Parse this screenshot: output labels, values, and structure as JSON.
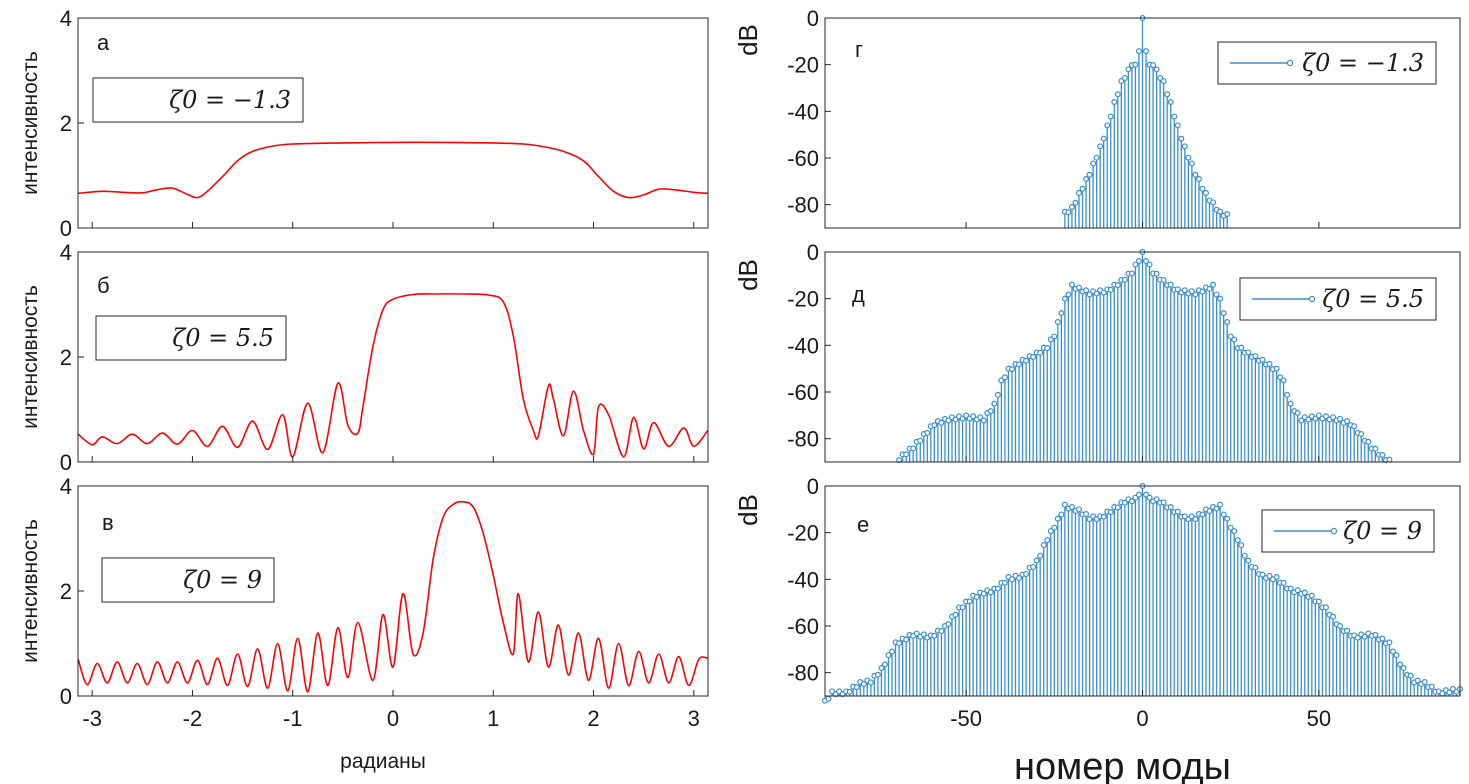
{
  "chart_data": [
    {
      "id": "a",
      "type": "line",
      "panel_letter": "а",
      "ylabel": "интенсивность",
      "xlabel": "",
      "legend": "ζ0 = −1.3",
      "xlim": [
        -3.1416,
        3.1416
      ],
      "ylim": [
        0,
        4
      ],
      "yticks": [
        "0",
        "2",
        "4"
      ],
      "xticks": [],
      "color": "#ff0000",
      "series": [
        {
          "x": [
            -3.14,
            -2.9,
            -2.7,
            -2.5,
            -2.35,
            -2.2,
            -2.05,
            -1.95,
            -1.85,
            -1.7,
            -1.55,
            -1.4,
            -1.2,
            -1.0,
            -0.5,
            0,
            0.5,
            1.0,
            1.3,
            1.5,
            1.7,
            1.9,
            2.05,
            2.2,
            2.35,
            2.5,
            2.65,
            2.8,
            3.0,
            3.14
          ],
          "y": [
            0.66,
            0.7,
            0.68,
            0.67,
            0.73,
            0.76,
            0.64,
            0.58,
            0.7,
            0.98,
            1.28,
            1.46,
            1.56,
            1.6,
            1.62,
            1.63,
            1.63,
            1.62,
            1.6,
            1.55,
            1.46,
            1.28,
            0.98,
            0.7,
            0.58,
            0.63,
            0.74,
            0.73,
            0.68,
            0.66
          ]
        }
      ]
    },
    {
      "id": "b",
      "type": "line",
      "panel_letter": "б",
      "ylabel": "интенсивность",
      "xlabel": "",
      "legend": "ζ0 = 5.5",
      "xlim": [
        -3.1416,
        3.1416
      ],
      "ylim": [
        0,
        4
      ],
      "yticks": [
        "0",
        "2",
        "4"
      ],
      "xticks": [],
      "color": "#ff0000",
      "series": [
        {
          "x": [
            -3.14,
            -3.0,
            -2.9,
            -2.75,
            -2.6,
            -2.45,
            -2.3,
            -2.15,
            -2.0,
            -1.85,
            -1.7,
            -1.55,
            -1.4,
            -1.25,
            -1.1,
            -1.0,
            -0.85,
            -0.7,
            -0.55,
            -0.45,
            -0.35,
            -0.3,
            -0.2,
            -0.1,
            0,
            0.2,
            0.4,
            0.7,
            0.95,
            1.1,
            1.2,
            1.3,
            1.4,
            1.45,
            1.55,
            1.6,
            1.7,
            1.8,
            1.9,
            2.0,
            2.05,
            2.15,
            2.3,
            2.4,
            2.5,
            2.6,
            2.75,
            2.9,
            3.0,
            3.14
          ],
          "y": [
            0.53,
            0.33,
            0.48,
            0.35,
            0.53,
            0.35,
            0.55,
            0.34,
            0.6,
            0.3,
            0.68,
            0.28,
            0.78,
            0.24,
            0.9,
            0.1,
            1.12,
            0.18,
            1.5,
            0.7,
            0.55,
            1.05,
            2.2,
            2.9,
            3.1,
            3.19,
            3.2,
            3.2,
            3.18,
            3.05,
            2.4,
            1.2,
            0.6,
            0.5,
            1.45,
            1.2,
            0.5,
            1.35,
            0.6,
            0.15,
            1.05,
            0.9,
            0.1,
            0.85,
            0.25,
            0.75,
            0.3,
            0.65,
            0.3,
            0.6
          ]
        }
      ]
    },
    {
      "id": "c",
      "type": "line",
      "panel_letter": "в",
      "ylabel": "интенсивность",
      "xlabel": "радианы",
      "legend": "ζ0 = 9",
      "xlim": [
        -3.1416,
        3.1416
      ],
      "ylim": [
        0,
        4
      ],
      "yticks": [
        "0",
        "2",
        "4"
      ],
      "xticks": [
        "-3",
        "-2",
        "-1",
        "0",
        "1",
        "2",
        "3"
      ],
      "color": "#ff0000",
      "series": [
        {
          "x": [
            -3.14,
            -3.05,
            -2.95,
            -2.85,
            -2.75,
            -2.65,
            -2.55,
            -2.45,
            -2.35,
            -2.25,
            -2.15,
            -2.05,
            -1.95,
            -1.85,
            -1.75,
            -1.65,
            -1.55,
            -1.45,
            -1.35,
            -1.25,
            -1.15,
            -1.05,
            -0.95,
            -0.85,
            -0.75,
            -0.65,
            -0.55,
            -0.45,
            -0.35,
            -0.2,
            -0.1,
            0,
            0.1,
            0.2,
            0.3,
            0.4,
            0.5,
            0.6,
            0.7,
            0.8,
            0.9,
            1.0,
            1.1,
            1.2,
            1.25,
            1.35,
            1.45,
            1.55,
            1.65,
            1.75,
            1.85,
            1.95,
            2.05,
            2.15,
            2.25,
            2.35,
            2.45,
            2.55,
            2.65,
            2.75,
            2.85,
            2.95,
            3.05,
            3.14
          ],
          "y": [
            0.7,
            0.22,
            0.62,
            0.25,
            0.65,
            0.25,
            0.62,
            0.22,
            0.65,
            0.25,
            0.65,
            0.25,
            0.68,
            0.22,
            0.72,
            0.2,
            0.8,
            0.18,
            0.9,
            0.15,
            1.0,
            0.1,
            1.1,
            0.08,
            1.2,
            0.2,
            1.3,
            0.35,
            1.4,
            0.3,
            1.55,
            0.55,
            1.95,
            0.8,
            1.2,
            2.6,
            3.4,
            3.65,
            3.7,
            3.6,
            3.1,
            2.3,
            1.4,
            0.8,
            1.95,
            0.65,
            1.6,
            0.55,
            1.35,
            0.4,
            1.2,
            0.3,
            1.1,
            0.15,
            1.0,
            0.2,
            0.85,
            0.25,
            0.8,
            0.25,
            0.75,
            0.2,
            0.7,
            0.72
          ]
        }
      ]
    },
    {
      "id": "d",
      "type": "stem",
      "panel_letter": "г",
      "ylabel": "dB",
      "xlabel": "",
      "legend": "ζ0 = −1.3",
      "xlim": [
        -90,
        90
      ],
      "ylim": [
        -90,
        0
      ],
      "yticks": [
        "0",
        "-20",
        "-40",
        "-60",
        "-80"
      ],
      "xticks": [],
      "color": "#3a8ecf",
      "envelope": {
        "x": [
          -22,
          -20,
          -18,
          -15,
          -12,
          -10,
          -8,
          -6,
          -4,
          -3,
          -2,
          -1,
          0,
          1,
          2,
          3,
          4,
          6,
          8,
          10,
          12,
          15,
          18,
          20,
          22,
          24
        ],
        "y": [
          -83,
          -81,
          -75,
          -66,
          -55,
          -46,
          -36,
          -27,
          -22,
          -19,
          -20,
          -13,
          0,
          -13,
          -20,
          -19,
          -22,
          -27,
          -36,
          -46,
          -55,
          -66,
          -75,
          -79,
          -83,
          -84
        ]
      }
    },
    {
      "id": "e",
      "type": "stem",
      "panel_letter": "д",
      "ylabel": "dB",
      "xlabel": "",
      "legend": "ζ0 = 5.5",
      "xlim": [
        -90,
        90
      ],
      "ylim": [
        -90,
        0
      ],
      "yticks": [
        "0",
        "-20",
        "-40",
        "-60",
        "-80"
      ],
      "xticks": [],
      "color": "#3a8ecf",
      "envelope": {
        "x": [
          -69,
          -65,
          -62,
          -59,
          -55,
          -50,
          -45,
          -42,
          -40,
          -38,
          -35,
          -30,
          -27,
          -25,
          -22,
          -20,
          -15,
          -10,
          -6,
          -3,
          0,
          3,
          6,
          10,
          15,
          20,
          22,
          25,
          27,
          30,
          35,
          38,
          40,
          42,
          45,
          50,
          55,
          59,
          62,
          65,
          68,
          70
        ],
        "y": [
          -88,
          -83,
          -78,
          -73,
          -71,
          -70,
          -71,
          -65,
          -55,
          -50,
          -47,
          -43,
          -40,
          -35,
          -20,
          -14,
          -17,
          -16,
          -12,
          -8,
          0,
          -8,
          -12,
          -16,
          -17,
          -14,
          -20,
          -35,
          -40,
          -43,
          -47,
          -50,
          -55,
          -65,
          -71,
          -70,
          -71,
          -73,
          -78,
          -83,
          -87,
          -89
        ]
      }
    },
    {
      "id": "f",
      "type": "stem",
      "panel_letter": "е",
      "ylabel": "dB",
      "xlabel": "номер моды",
      "legend": "ζ0 = 9",
      "xlim": [
        -90,
        90
      ],
      "ylim": [
        -90,
        0
      ],
      "yticks": [
        "0",
        "-20",
        "-40",
        "-60",
        "-80"
      ],
      "xticks": [
        "-50",
        "0",
        "50"
      ],
      "color": "#3a8ecf",
      "envelope": {
        "x": [
          -90,
          -88,
          -84,
          -80,
          -77,
          -74,
          -70,
          -65,
          -60,
          -56,
          -52,
          -48,
          -45,
          -42,
          -38,
          -34,
          -30,
          -27,
          -24,
          -22,
          -18,
          -15,
          -12,
          -9,
          -5,
          -2,
          0,
          2,
          5,
          9,
          12,
          15,
          18,
          22,
          24,
          27,
          30,
          34,
          38,
          42,
          45,
          48,
          52,
          56,
          60,
          65,
          70,
          74,
          77,
          80,
          84,
          88,
          90
        ],
        "y": [
          -92,
          -88,
          -88,
          -84,
          -83,
          -78,
          -67,
          -63,
          -64,
          -60,
          -52,
          -47,
          -45,
          -44,
          -39,
          -38,
          -32,
          -22,
          -14,
          -8,
          -10,
          -13,
          -13,
          -10,
          -6,
          -5,
          0,
          -5,
          -6,
          -10,
          -13,
          -13,
          -10,
          -8,
          -14,
          -22,
          -32,
          -38,
          -39,
          -44,
          -45,
          -47,
          -52,
          -60,
          -64,
          -63,
          -67,
          -78,
          -83,
          -84,
          -88,
          -87,
          -87
        ]
      }
    }
  ]
}
